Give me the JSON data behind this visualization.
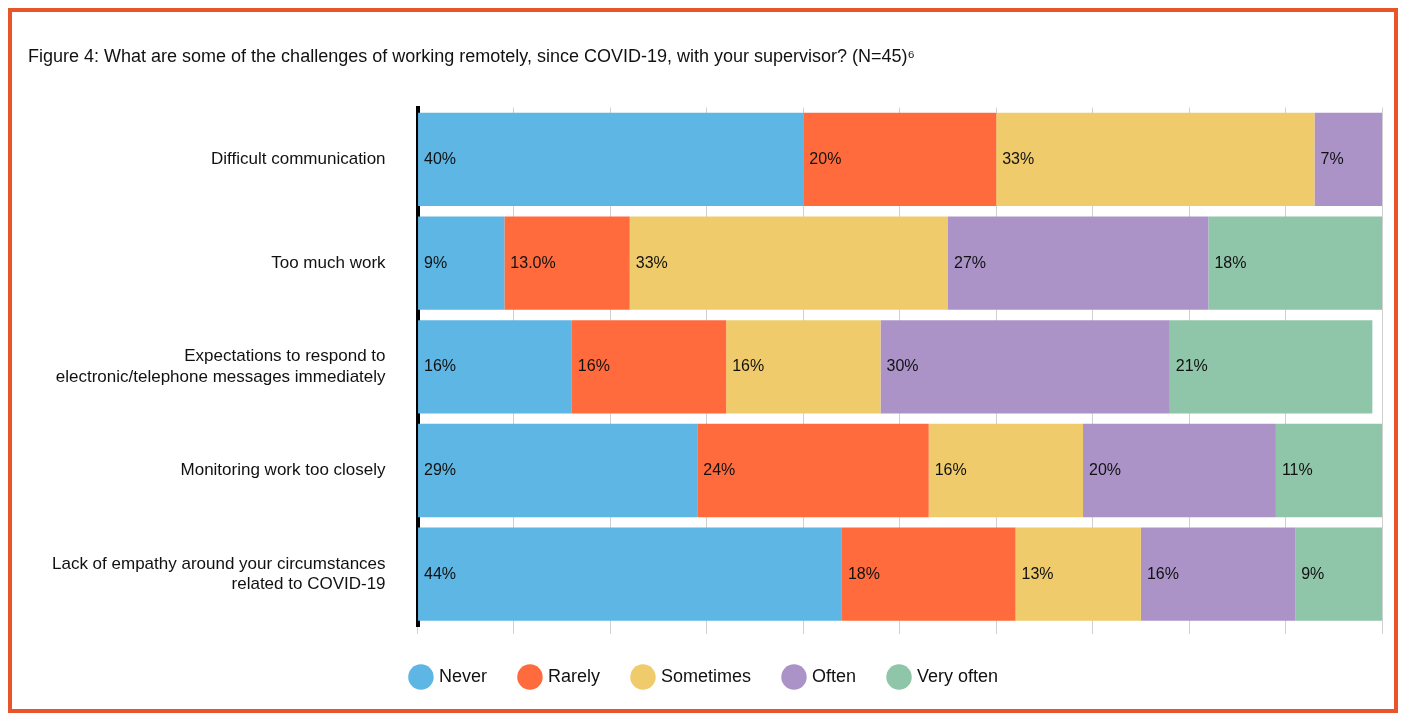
{
  "chart_data": {
    "type": "bar",
    "orientation": "horizontal",
    "stacked": true,
    "title": "Figure 4: What are some of the challenges of working remotely, since COVID-19, with your supervisor? (N=45)⁶",
    "categories": [
      "Difficult communication",
      "Too much work",
      "Expectations to respond to electronic/telephone messages immediately",
      "Monitoring work too closely",
      "Lack of empathy around your circumstances related to COVID-19"
    ],
    "series": [
      {
        "name": "Never",
        "color": "#5db6e4",
        "values": [
          40,
          9,
          16,
          29,
          44
        ],
        "value_labels": [
          "40%",
          "9%",
          "16%",
          "29%",
          "44%"
        ]
      },
      {
        "name": "Rarely",
        "color": "#ff6b3d",
        "values": [
          20,
          13,
          16,
          24,
          18
        ],
        "value_labels": [
          "20%",
          "13.0%",
          "16%",
          "24%",
          "18%"
        ]
      },
      {
        "name": "Sometimes",
        "color": "#efcb6b",
        "values": [
          33,
          33,
          16,
          16,
          13
        ],
        "value_labels": [
          "33%",
          "33%",
          "16%",
          "16%",
          "13%"
        ]
      },
      {
        "name": "Often",
        "color": "#ab93c8",
        "values": [
          7,
          27,
          30,
          20,
          16
        ],
        "value_labels": [
          "7%",
          "27%",
          "30%",
          "20%",
          "16%"
        ]
      },
      {
        "name": "Very often",
        "color": "#8fc5a8",
        "values": [
          null,
          18,
          21,
          11,
          9
        ],
        "value_labels": [
          null,
          "18%",
          "21%",
          "11%",
          "9%"
        ]
      }
    ],
    "xlim": [
      0,
      100
    ],
    "xticks": [
      {
        "value": 0,
        "label": null
      },
      {
        "value": 10,
        "label": null
      },
      {
        "value": 20,
        "label": null
      },
      {
        "value": 30,
        "label": null
      },
      {
        "value": 40,
        "label": null
      },
      {
        "value": 50,
        "label": null
      },
      {
        "value": 60,
        "label": null
      },
      {
        "value": 70,
        "label": null
      },
      {
        "value": 80,
        "label": null
      },
      {
        "value": 90,
        "label": null
      },
      {
        "value": 100,
        "label": null
      }
    ],
    "tick_labels": "y",
    "grid": "x",
    "legend": "bottom"
  }
}
